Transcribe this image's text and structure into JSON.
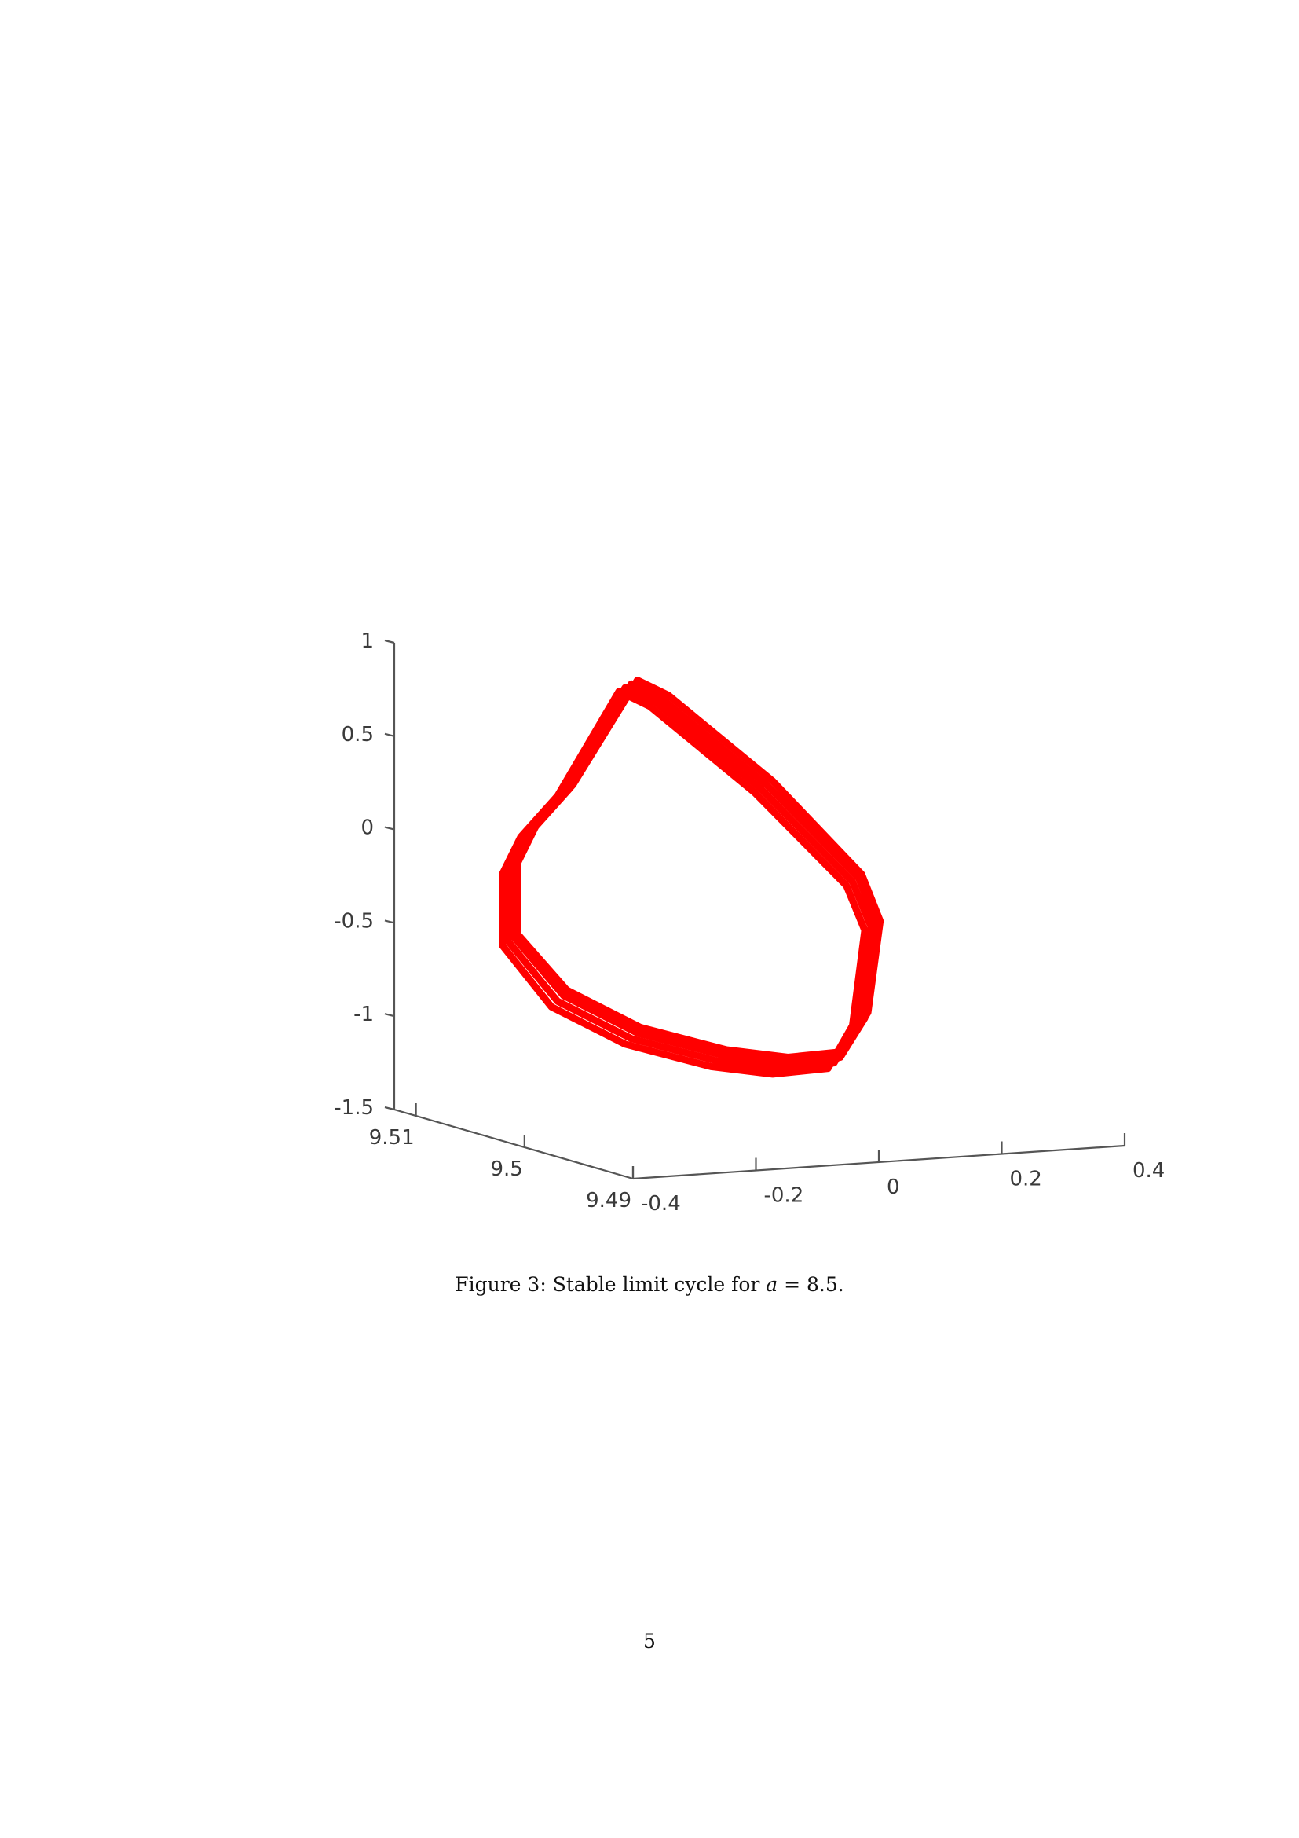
{
  "figure": {
    "caption_prefix": "Figure 3: Stable limit cycle for ",
    "caption_math": "a",
    "caption_suffix": " = 8.5."
  },
  "page_number": "5",
  "chart_data": {
    "type": "line",
    "title": "",
    "xlabel": "",
    "ylabel": "",
    "zlabel": "",
    "x_axis": {
      "ticks": [
        -0.4,
        -0.2,
        0,
        0.2,
        0.4
      ],
      "tick_labels": [
        "-0.4",
        "-0.2",
        "0",
        "0.2",
        "0.4"
      ],
      "range": [
        -0.4,
        0.4
      ]
    },
    "y_axis": {
      "ticks": [
        9.51,
        9.5,
        9.49
      ],
      "tick_labels": [
        "9.51",
        "9.5",
        "9.49"
      ],
      "range": [
        9.49,
        9.512
      ]
    },
    "z_axis": {
      "ticks": [
        1,
        0.5,
        0,
        -0.5,
        -1,
        -1.5
      ],
      "tick_labels": [
        "1",
        "0.5",
        "0",
        "-0.5",
        "-1",
        "-1.5"
      ],
      "range": [
        -1.5,
        1
      ]
    },
    "grid": false,
    "line_color": "#ff0000",
    "series": [
      {
        "closed": true,
        "z_offset": 0.0,
        "points": [
          [
            -0.17,
            0.76
          ],
          [
            -0.12,
            0.68
          ],
          [
            0.05,
            0.22
          ],
          [
            0.2,
            -0.28
          ],
          [
            0.23,
            -0.52
          ],
          [
            0.21,
            -1.03
          ],
          [
            0.17,
            -1.25
          ],
          [
            0.08,
            -1.28
          ],
          [
            -0.02,
            -1.24
          ],
          [
            -0.16,
            -1.12
          ],
          [
            -0.28,
            -0.92
          ],
          [
            -0.36,
            -0.6
          ],
          [
            -0.36,
            -0.22
          ],
          [
            -0.33,
            -0.02
          ],
          [
            -0.27,
            0.2
          ]
        ]
      },
      {
        "closed": true,
        "z_offset": 0.04,
        "points": [
          [
            -0.16,
            0.74
          ],
          [
            -0.11,
            0.66
          ],
          [
            0.06,
            0.2
          ],
          [
            0.21,
            -0.3
          ],
          [
            0.24,
            -0.55
          ],
          [
            0.22,
            -1.05
          ],
          [
            0.18,
            -1.26
          ],
          [
            0.09,
            -1.29
          ],
          [
            -0.01,
            -1.25
          ],
          [
            -0.15,
            -1.13
          ],
          [
            -0.27,
            -0.93
          ],
          [
            -0.35,
            -0.62
          ],
          [
            -0.35,
            -0.24
          ],
          [
            -0.32,
            -0.04
          ],
          [
            -0.26,
            0.18
          ]
        ]
      },
      {
        "closed": true,
        "z_offset": -0.04,
        "points": [
          [
            -0.18,
            0.78
          ],
          [
            -0.13,
            0.7
          ],
          [
            0.04,
            0.24
          ],
          [
            0.19,
            -0.26
          ],
          [
            0.22,
            -0.5
          ],
          [
            0.2,
            -1.01
          ],
          [
            0.16,
            -1.24
          ],
          [
            0.07,
            -1.27
          ],
          [
            -0.03,
            -1.23
          ],
          [
            -0.17,
            -1.11
          ],
          [
            -0.29,
            -0.91
          ],
          [
            -0.37,
            -0.58
          ],
          [
            -0.37,
            -0.2
          ],
          [
            -0.34,
            0.0
          ],
          [
            -0.28,
            0.22
          ]
        ]
      },
      {
        "closed": true,
        "z_offset": 0.08,
        "points": [
          [
            -0.15,
            0.72
          ],
          [
            -0.1,
            0.64
          ],
          [
            0.07,
            0.18
          ],
          [
            0.215,
            -0.32
          ],
          [
            0.245,
            -0.57
          ],
          [
            0.225,
            -1.06
          ],
          [
            0.185,
            -1.27
          ],
          [
            0.095,
            -1.3
          ],
          [
            -0.005,
            -1.26
          ],
          [
            -0.145,
            -1.14
          ],
          [
            -0.265,
            -0.94
          ],
          [
            -0.345,
            -0.64
          ],
          [
            -0.345,
            -0.26
          ],
          [
            -0.315,
            -0.06
          ],
          [
            -0.255,
            0.16
          ]
        ]
      }
    ]
  }
}
